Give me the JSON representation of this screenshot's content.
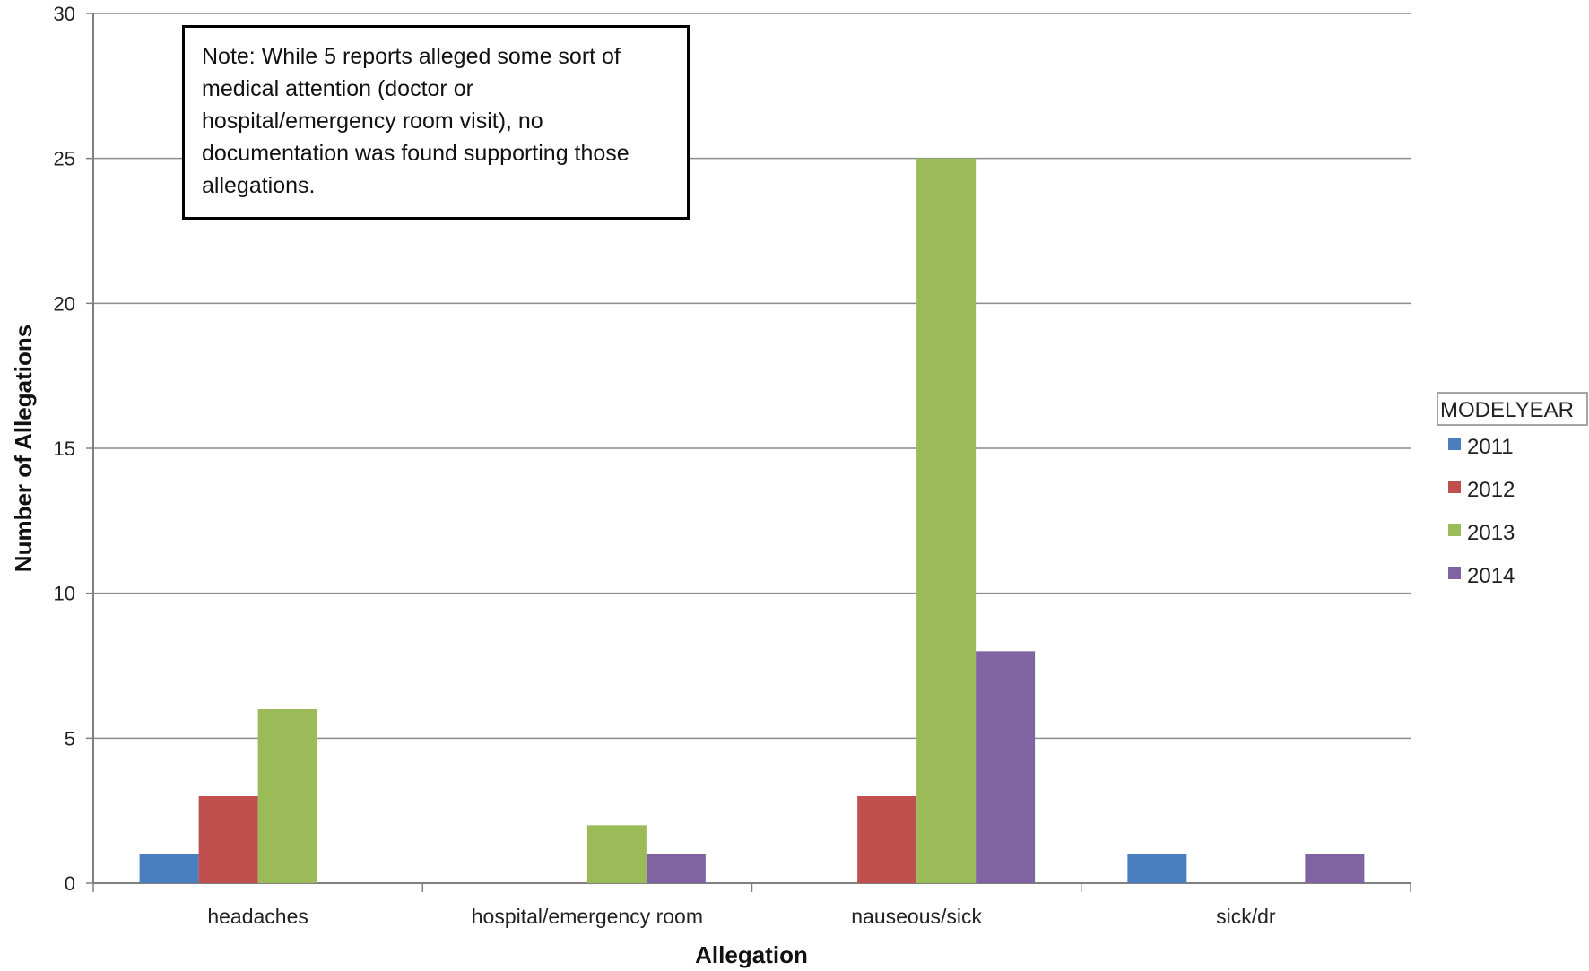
{
  "chart_data": {
    "type": "bar",
    "title": "",
    "xlabel": "Allegation",
    "ylabel": "Number of Allegations",
    "ylim": [
      0,
      30
    ],
    "yticks": [
      0,
      5,
      10,
      15,
      20,
      25,
      30
    ],
    "grid": true,
    "legend_title": "MODELYEAR",
    "legend_position": "right",
    "categories": [
      "headaches",
      "hospital/emergency room",
      "nauseous/sick",
      "sick/dr"
    ],
    "series": [
      {
        "name": "2011",
        "color": "#4a7ebf",
        "values": [
          1,
          0,
          0,
          1
        ]
      },
      {
        "name": "2012",
        "color": "#c0504d",
        "values": [
          3,
          0,
          3,
          0
        ]
      },
      {
        "name": "2013",
        "color": "#9bbb59",
        "values": [
          6,
          2,
          25,
          0
        ]
      },
      {
        "name": "2014",
        "color": "#8064a2",
        "values": [
          0,
          1,
          8,
          1
        ]
      }
    ],
    "annotation": "Note: While 5 reports alleged some sort of medical attention (doctor or hospital/emergency room visit), no documentation was found supporting those allegations."
  }
}
